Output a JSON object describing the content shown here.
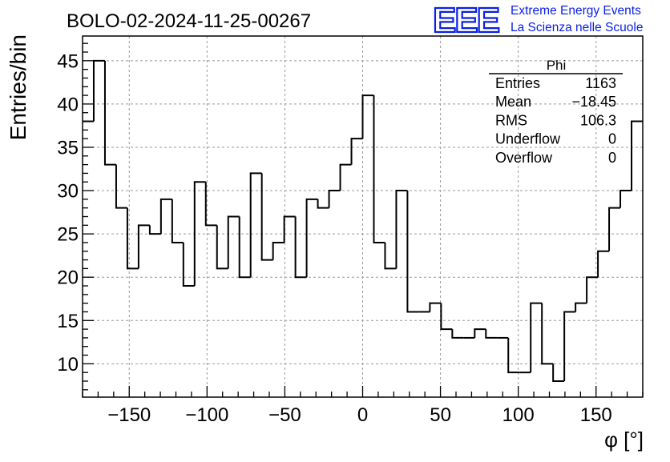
{
  "chart_data": {
    "type": "histogram",
    "title": "BOLO-02-2024-11-25-00267",
    "xlabel": "φ [°]",
    "ylabel": "Entries/bin",
    "xlim": [
      -180,
      180
    ],
    "ylim": [
      6.15,
      47.85
    ],
    "bin_width": 7.2,
    "bin_edges_start": -180,
    "values": [
      38,
      45,
      33,
      28,
      21,
      26,
      25,
      29,
      24,
      19,
      31,
      26,
      21,
      27,
      20,
      32,
      22,
      24,
      27,
      20,
      29,
      28,
      30,
      33,
      36,
      41,
      24,
      21,
      30,
      16,
      16,
      17,
      14,
      13,
      13,
      14,
      13,
      13,
      9,
      9,
      17,
      10,
      8,
      16,
      17,
      20,
      23,
      28,
      30,
      38
    ],
    "x_ticks": [
      "−150",
      "−100",
      "−50",
      "0",
      "50",
      "100",
      "150"
    ],
    "x_tick_values": [
      -150,
      -100,
      -50,
      0,
      50,
      100,
      150
    ],
    "y_ticks": [
      "10",
      "15",
      "20",
      "25",
      "30",
      "35",
      "40",
      "45"
    ],
    "y_tick_values": [
      10,
      15,
      20,
      25,
      30,
      35,
      40,
      45
    ],
    "grid": true,
    "line_color": "#000000",
    "stats_box": {
      "title": "Phi",
      "rows": [
        {
          "label": "Entries",
          "value": "1163"
        },
        {
          "label": "Mean",
          "value": "−18.45"
        },
        {
          "label": "RMS",
          "value": "106.3"
        },
        {
          "label": "Underflow",
          "value": "0"
        },
        {
          "label": "Overflow",
          "value": "0"
        }
      ]
    }
  },
  "logo": {
    "text": "EEE",
    "line1": "Extreme Energy Events",
    "line2": "La Scienza nelle Scuole",
    "color": "#0a1fe6"
  }
}
